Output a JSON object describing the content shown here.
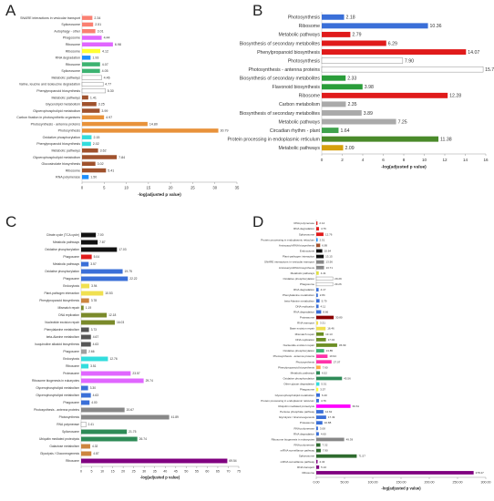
{
  "panels": [
    {
      "letter": "A"
    },
    {
      "letter": "B"
    },
    {
      "letter": "C"
    },
    {
      "letter": "D"
    }
  ],
  "chart_data": [
    {
      "panel": "A",
      "type": "bar",
      "xlabel": "-log(adjusted p value)",
      "xlim": [
        0,
        35
      ],
      "xticks": [
        0,
        5,
        10,
        15,
        20,
        25,
        30,
        35
      ],
      "categories": [
        "SNARE interactions in vesicular transport",
        "Spliceosome",
        "Autophagy - other",
        "Phagosome",
        "Ribosome",
        "Ribosome",
        "RNA degradation",
        "Ribosome",
        "Spliceosome",
        "Metabolic pathways",
        "Valine, leucine and isoleucine degradation",
        "Phenylpropanoid biosynthesis",
        "Metabolic pathways",
        "Glycerolipid metabolism",
        "Glycerophospholipid metabolism",
        "Carbon fixation in photosynthetic organisms",
        "Photosynthesis - antenna proteins",
        "Photosynthesis",
        "Oxidative phosphorylation",
        "Phenylpropanoid biosynthesis",
        "Metabolic pathways",
        "Glycerophospholipid metabolism",
        "Glucosinolate biosynthesis",
        "Ribosome",
        "RNA polymerase"
      ],
      "values": [
        2.34,
        2.51,
        3.01,
        4.44,
        6.98,
        4.12,
        1.93,
        4.07,
        4.05,
        4.46,
        4.77,
        5.3,
        1.41,
        3.25,
        3.99,
        4.97,
        14.8,
        30.79,
        2.15,
        2.02,
        3.62,
        7.84,
        3.02,
        5.41,
        1.5
      ],
      "colors": [
        "#fa8072",
        "#fa8072",
        "#fa8072",
        "#e066ff",
        "#e066ff",
        "#ffff33",
        "#1e90ff",
        "#3cb371",
        "#3cb371",
        "#ffffff",
        "#ffffff",
        "#ffffff",
        "#a0522d",
        "#a0522d",
        "#a0522d",
        "#e8923a",
        "#e8923a",
        "#e8923a",
        "#33dddd",
        "#33dddd",
        "#a0522d",
        "#a0522d",
        "#a0522d",
        "#a0522d",
        "#1e90ff"
      ]
    },
    {
      "panel": "B",
      "type": "bar",
      "xlabel": "-log(adjusted p value)",
      "xlim": [
        0,
        16
      ],
      "xticks": [
        0,
        2,
        4,
        6,
        8,
        10,
        12,
        14,
        16
      ],
      "categories": [
        "Photosynthesis",
        "Ribosome",
        "Metabolic pathways",
        "Biosynthesis of secondary metabolites",
        "Phenylpropanoid biosynthesis",
        "Photosynthesis",
        "Photosynthesis - antenna proteins",
        "Biosynthesis of secondary metabolites",
        "Flavonoid biosynthesis",
        "Ribosome",
        "Carbon metabolism",
        "Biosynthesis of secondary metabolites",
        "Metabolic pathways",
        "Circadian rhythm - plant",
        "Protein processing in endoplasmic reticulum",
        "Metabolic pathways"
      ],
      "values": [
        2.18,
        10.36,
        2.79,
        6.29,
        14.07,
        7.9,
        15.74,
        2.33,
        3.98,
        12.28,
        2.35,
        3.89,
        7.25,
        1.64,
        11.38,
        2.09
      ],
      "colors": [
        "#3a6fd8",
        "#3a6fd8",
        "#e01b1b",
        "#e01b1b",
        "#e01b1b",
        "#ffffff",
        "#ffffff",
        "#2a9d3a",
        "#2a9d3a",
        "#e01b1b",
        "#aaaaaa",
        "#aaaaaa",
        "#aaaaaa",
        "#3fa34d",
        "#4a8a2a",
        "#d6a00e"
      ]
    },
    {
      "panel": "C",
      "type": "bar",
      "xlabel": "-log(adjusted p value)",
      "xlim": [
        0,
        75
      ],
      "xticks": [
        0,
        5,
        10,
        15,
        20,
        25,
        30,
        35,
        40,
        45,
        50,
        55,
        60,
        65,
        70,
        75
      ],
      "categories": [
        "Citrate cycle (TCA cycle)",
        "Metabolic pathways",
        "Oxidative phosphorylation",
        "Phagosome",
        "Metabolic pathways",
        "Oxidative phosphorylation",
        "Phagosome",
        "Endocytosis",
        "Plant-pathogen interaction",
        "Phenylpropanoid biosynthesis",
        "Mismatch repair",
        "DNA replication",
        "Nucleotide excision repair",
        "Phenylalanine metabolism",
        "beta-Alanine metabolism",
        "Isoquinoline alkaloid biosynthesis",
        "Phagosome",
        "Endocytosis",
        "Ribosome",
        "Proteasome",
        "Ribosome biogenesis in eukaryotes",
        "Glycerophospholipid metabolism",
        "Glycerophospholipid metabolism",
        "Phagosome",
        "Photosynthesis - antenna proteins",
        "Photosynthesis",
        "RNA polymerase",
        "Spliceosome",
        "Ubiquitin mediated proteolysis",
        "Galactose metabolism",
        "Glycolysis / Gluconeogenesis",
        "Ribosome"
      ],
      "values": [
        7.0,
        7.87,
        17.03,
        5.04,
        3.57,
        19.75,
        22.22,
        3.94,
        10.53,
        3.78,
        1.19,
        12.18,
        16.03,
        3.73,
        4.67,
        4.63,
        2.66,
        12.76,
        3.51,
        23.57,
        29.74,
        3.3,
        4.63,
        4.0,
        20.67,
        41.89,
        2.41,
        21.75,
        26.74,
        4.32,
        4.87,
        69.54
      ],
      "colors": [
        "#111111",
        "#111111",
        "#111111",
        "#e01b1b",
        "#3a6fd8",
        "#3a6fd8",
        "#3a6fd8",
        "#f0e050",
        "#f0e050",
        "#cd853f",
        "#7a8a2a",
        "#7a8a2a",
        "#7a8a2a",
        "#555555",
        "#555555",
        "#555555",
        "#a0a0a0",
        "#33dddd",
        "#33dddd",
        "#e066ff",
        "#e066ff",
        "#3a6fd8",
        "#3a6fd8",
        "#3a6fd8",
        "#888888",
        "#888888",
        "#ffffff",
        "#2e8b57",
        "#2e8b57",
        "#cd853f",
        "#cd853f",
        "#800080"
      ]
    },
    {
      "panel": "D",
      "type": "bar",
      "xlabel": "-log(adjusted p value)",
      "xlim": [
        0,
        300
      ],
      "xticks": [
        "0.00",
        "50.00",
        "100.00",
        "150.00",
        "200.00",
        "250.00",
        "300.00"
      ],
      "xtick_values": [
        0,
        50,
        100,
        150,
        200,
        250,
        300
      ],
      "categories": [
        "RNA polymerase",
        "RNA degradation",
        "Spliceosome",
        "Protein processing in endoplasmic reticulum",
        "Aminoacyl-tRNA biosynthesis",
        "Endocytosis",
        "Plant-pathogen interaction",
        "SNARE interactions in vesicular transport",
        "Aminoacyl-tRNA biosynthesis",
        "Metabolic pathways",
        "Oxidative phosphorylation",
        "Phagosome",
        "RNA degradation",
        "Phenylalanine metabolism",
        "beta-Alanine metabolism",
        "DNA replication",
        "RNA degradation",
        "Proteasome",
        "RNA transport",
        "Base excision repair",
        "Mismatch repair",
        "DNA replication",
        "Nucleotide excision repair",
        "Oxidative phosphorylation",
        "Photosynthesis - antenna proteins",
        "Photosynthesis",
        "Phenylpropanoid biosynthesis",
        "Metabolic pathways",
        "Oxidative phosphorylation",
        "Other glycan degradation",
        "Phagosome",
        "Glycerophospholipid metabolism",
        "Protein processing in endoplasmic reticulum",
        "Ubiquitin mediated proteolysis",
        "Pentose phosphate pathway",
        "Glycolysis / Gluconeogenesis",
        "Proteasome",
        "RNA polymerase",
        "RNA degradation",
        "Ribosome biogenesis in eukaryotes",
        "RNA polymerase",
        "mRNA surveillance pathway",
        "Spliceosome",
        "mRNA surveillance pathway",
        "RNA transport",
        "Ribosome"
      ],
      "values": [
        2.14,
        4.76,
        12.76,
        2.51,
        6.89,
        10.64,
        13.15,
        13.56,
        13.71,
        4.41,
        29.29,
        29.26,
        4.17,
        2.84,
        5.79,
        4.11,
        8.66,
        30.8,
        3.31,
        16.46,
        13.13,
        17.04,
        36.99,
        13.85,
        19.94,
        27.07,
        7.6,
        6.52,
        45.56,
        5.51,
        3.57,
        6.4,
        4.76,
        60.61,
        12.62,
        17.49,
        10.88,
        3.08,
        4.6,
        49.39,
        7.32,
        7.9,
        71.57,
        2.34,
        5.1,
        278.47
      ],
      "colors": [
        "#e01b1b",
        "#e01b1b",
        "#e01b1b",
        "#1e90ff",
        "#a0522d",
        "#111111",
        "#111111",
        "#888888",
        "#888888",
        "#e0e040",
        "#ffffff",
        "#ffffff",
        "#3a6fd8",
        "#3a6fd8",
        "#3a6fd8",
        "#3a6fd8",
        "#3a6fd8",
        "#8b0000",
        "#f0e050",
        "#f0e050",
        "#6b8e23",
        "#6b8e23",
        "#6b8e23",
        "#3cb371",
        "#ff33aa",
        "#ff33aa",
        "#ffaa44",
        "#2e8b57",
        "#2e8b57",
        "#33dddd",
        "#ffff33",
        "#3a6fd8",
        "#3a6fd8",
        "#ff00ff",
        "#3a6fd8",
        "#3a6fd8",
        "#3a6fd8",
        "#3a6fd8",
        "#3a6fd8",
        "#888888",
        "#2e6b2e",
        "#2e6b2e",
        "#2e6b2e",
        "#800080",
        "#800080",
        "#800080"
      ]
    }
  ]
}
